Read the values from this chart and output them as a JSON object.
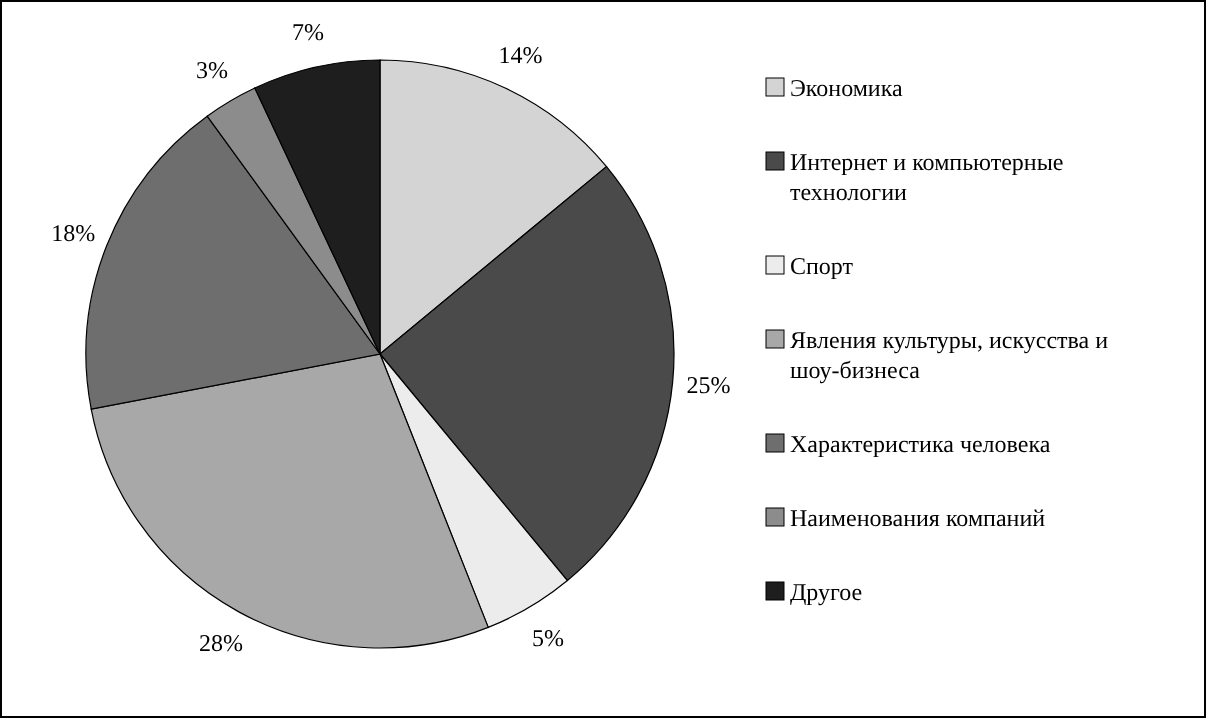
{
  "chart_data": {
    "type": "pie",
    "categories": [
      "Экономика",
      "Интернет и компьютерные технологии",
      "Спорт",
      "Явления культуры, искусства и шоу-бизнеса",
      "Характеристика человека",
      "Наименования компаний",
      "Другое"
    ],
    "values": [
      14,
      25,
      5,
      28,
      18,
      3,
      7
    ],
    "colors": [
      "#d4d4d4",
      "#4a4a4a",
      "#ececec",
      "#a8a8a8",
      "#6e6e6e",
      "#8c8c8c",
      "#1e1e1e"
    ],
    "value_labels": [
      "14%",
      "25%",
      "5%",
      "28%",
      "18%",
      "3%",
      "7%"
    ],
    "legend": "right"
  }
}
